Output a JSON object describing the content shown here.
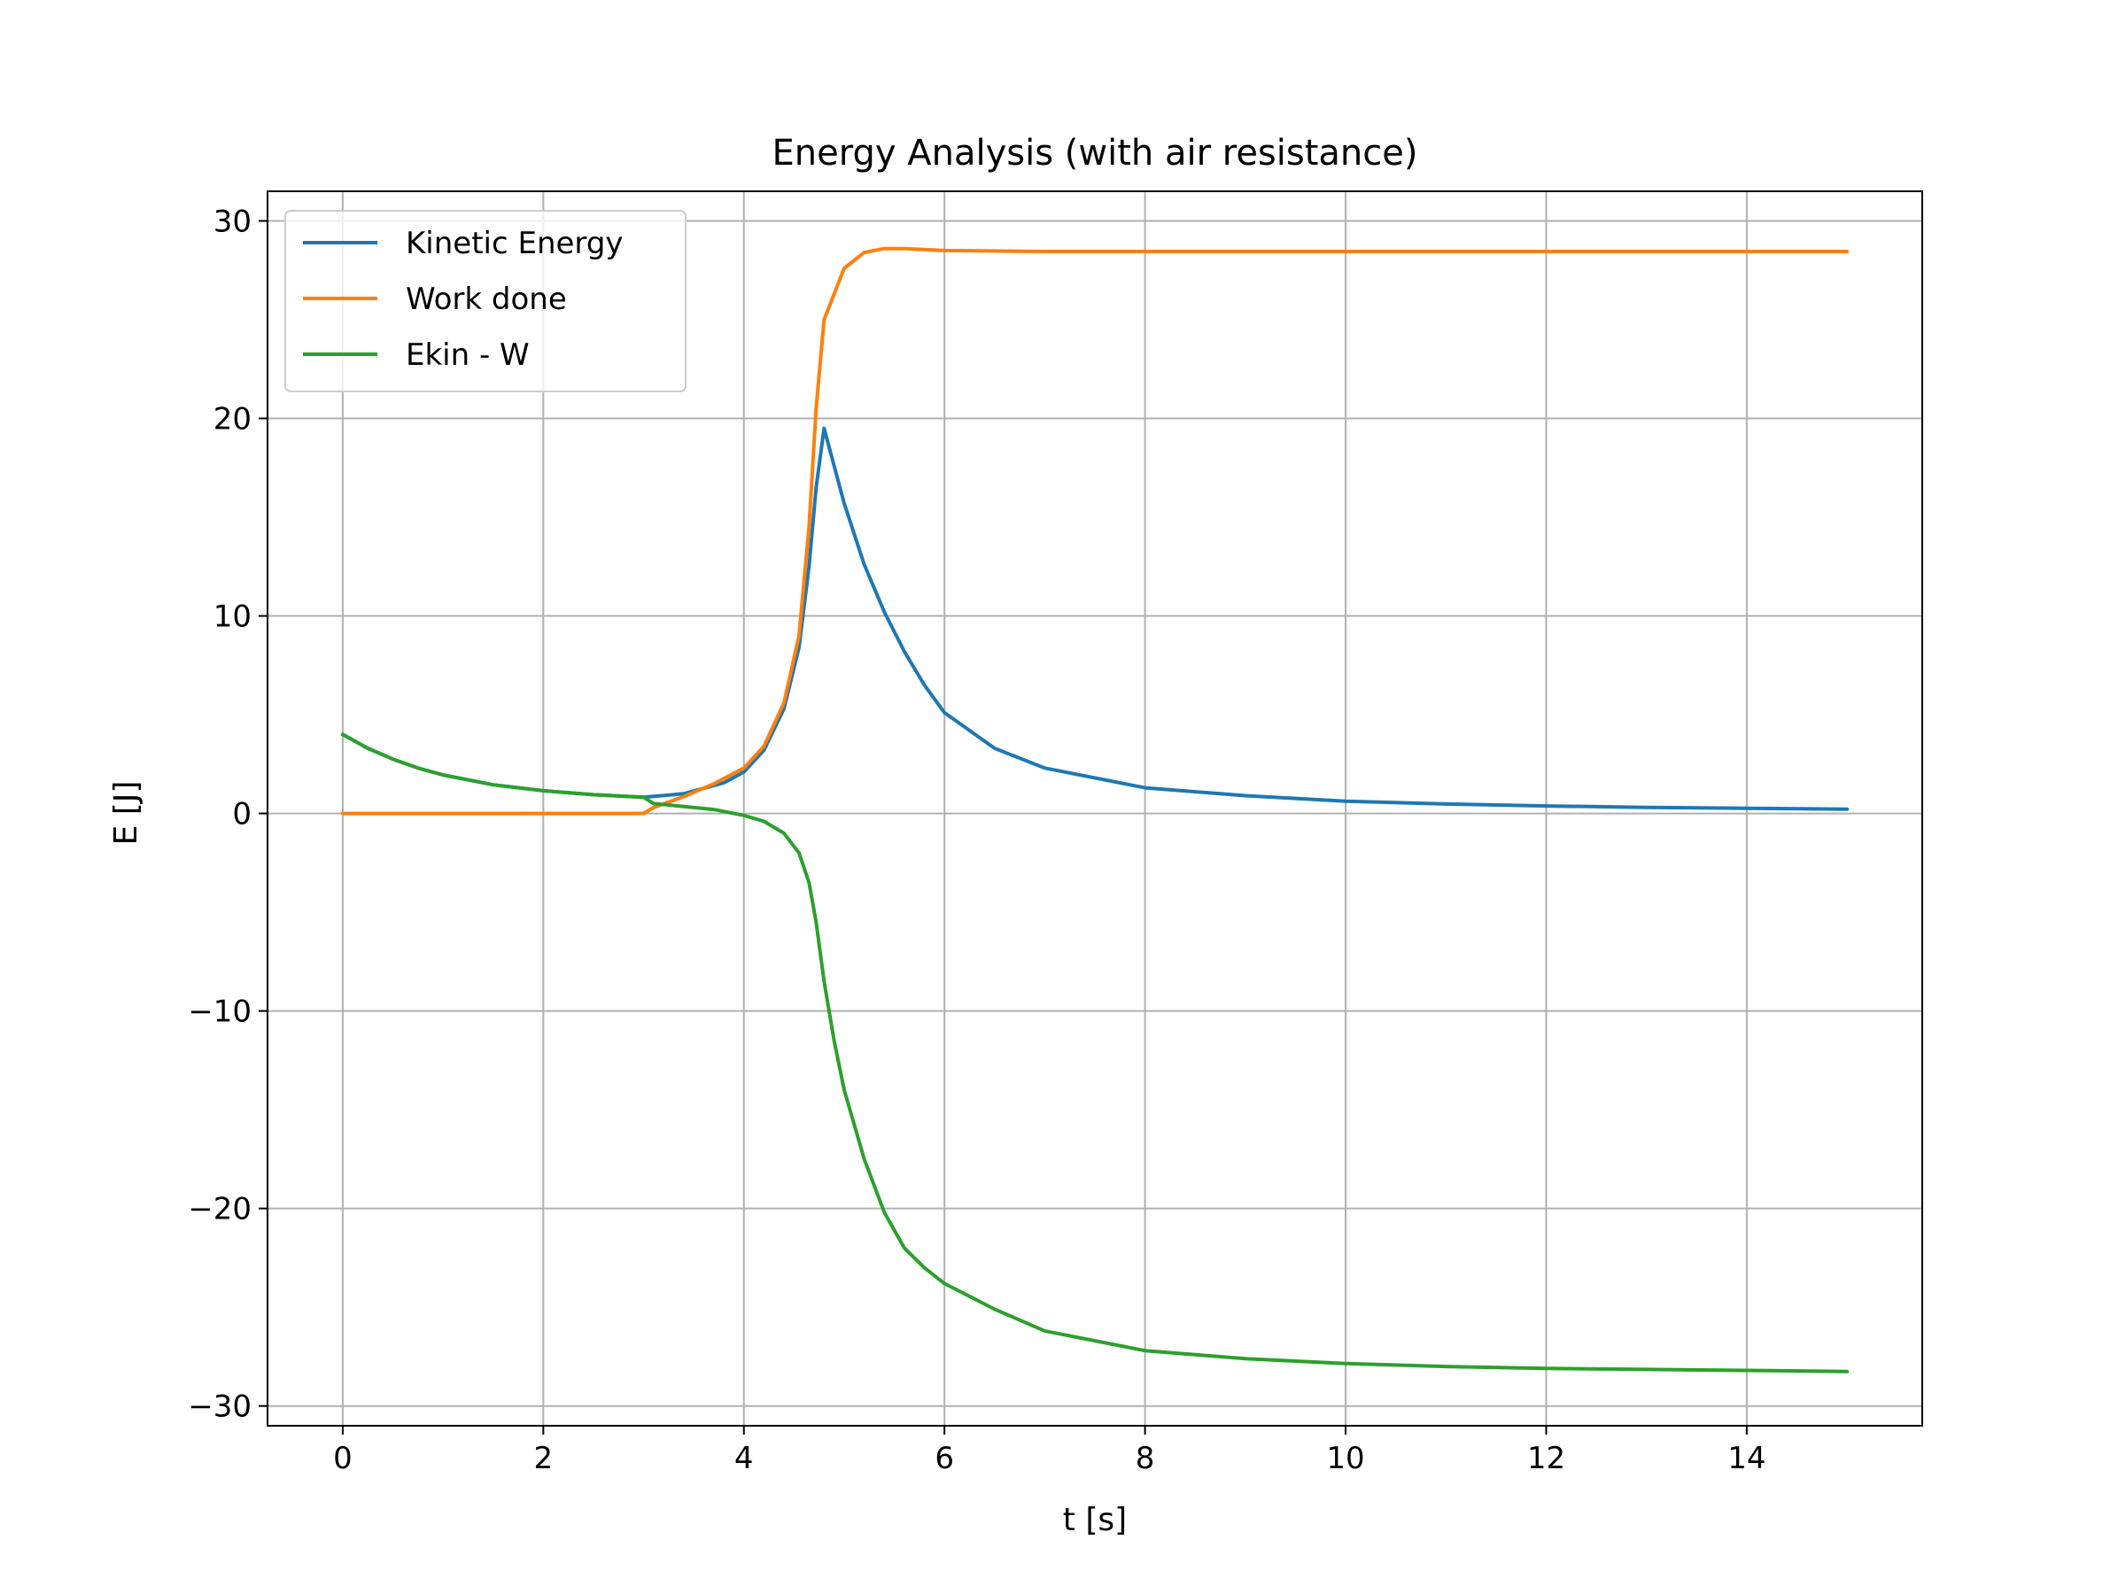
{
  "chart_data": {
    "type": "line",
    "title": "Energy Analysis (with air resistance)",
    "xlabel": "t [s]",
    "ylabel": "E [J]",
    "xlim": [
      -0.75,
      15.75
    ],
    "ylim": [
      -31.0,
      31.5
    ],
    "x_ticks": [
      0,
      2,
      4,
      6,
      8,
      10,
      12,
      14
    ],
    "y_ticks": [
      -30,
      -20,
      -10,
      0,
      10,
      20,
      30
    ],
    "x_tick_labels": [
      "0",
      "2",
      "4",
      "6",
      "8",
      "10",
      "12",
      "14"
    ],
    "y_tick_labels": [
      "−30",
      "−20",
      "−10",
      "0",
      "10",
      "20",
      "30"
    ],
    "grid": true,
    "legend_position": "top-left",
    "series": [
      {
        "name": "Kinetic Energy",
        "color": "#1f77b4",
        "x": [
          0,
          0.25,
          0.5,
          0.75,
          1.0,
          1.5,
          2.0,
          2.5,
          3.0,
          3.4,
          3.8,
          4.0,
          4.2,
          4.4,
          4.55,
          4.65,
          4.72,
          4.8,
          4.9,
          5.0,
          5.2,
          5.4,
          5.6,
          5.8,
          6.0,
          6.5,
          7.0,
          8.0,
          9.0,
          10.0,
          11.0,
          12.0,
          13.0,
          14.0,
          15.0
        ],
        "y": [
          4.0,
          3.3,
          2.75,
          2.3,
          1.95,
          1.45,
          1.15,
          0.95,
          0.82,
          1.0,
          1.55,
          2.1,
          3.2,
          5.3,
          8.4,
          12.5,
          16.5,
          19.5,
          17.6,
          15.7,
          12.6,
          10.2,
          8.2,
          6.5,
          5.1,
          3.3,
          2.3,
          1.3,
          0.9,
          0.62,
          0.48,
          0.38,
          0.31,
          0.26,
          0.22
        ]
      },
      {
        "name": "Work done",
        "color": "#ff7f0e",
        "x": [
          0,
          1.0,
          2.0,
          3.0,
          3.1,
          3.4,
          3.7,
          4.0,
          4.2,
          4.4,
          4.55,
          4.65,
          4.72,
          4.8,
          5.0,
          5.2,
          5.4,
          5.6,
          6.0,
          7.0,
          8.0,
          10.0,
          12.0,
          15.0
        ],
        "y": [
          0,
          0,
          0,
          0,
          0.3,
          0.85,
          1.5,
          2.3,
          3.4,
          5.6,
          9.0,
          14.5,
          20.5,
          25.0,
          27.6,
          28.4,
          28.6,
          28.6,
          28.5,
          28.45,
          28.45,
          28.45,
          28.45,
          28.45
        ]
      },
      {
        "name": "Ekin - W",
        "color": "#2ca02c",
        "x": [
          0,
          0.25,
          0.5,
          0.75,
          1.0,
          1.5,
          2.0,
          2.5,
          3.0,
          3.1,
          3.4,
          3.7,
          4.0,
          4.2,
          4.4,
          4.55,
          4.65,
          4.72,
          4.8,
          4.9,
          5.0,
          5.2,
          5.4,
          5.6,
          5.8,
          6.0,
          6.5,
          7.0,
          8.0,
          9.0,
          10.0,
          11.0,
          12.0,
          13.0,
          14.0,
          15.0
        ],
        "y": [
          4.0,
          3.3,
          2.75,
          2.3,
          1.95,
          1.45,
          1.15,
          0.95,
          0.82,
          0.5,
          0.35,
          0.2,
          -0.1,
          -0.4,
          -1.0,
          -2.0,
          -3.5,
          -5.5,
          -8.5,
          -11.5,
          -14.0,
          -17.5,
          -20.2,
          -22.0,
          -23.0,
          -23.8,
          -25.1,
          -26.2,
          -27.2,
          -27.6,
          -27.85,
          -28.0,
          -28.1,
          -28.15,
          -28.2,
          -28.25
        ]
      }
    ]
  }
}
